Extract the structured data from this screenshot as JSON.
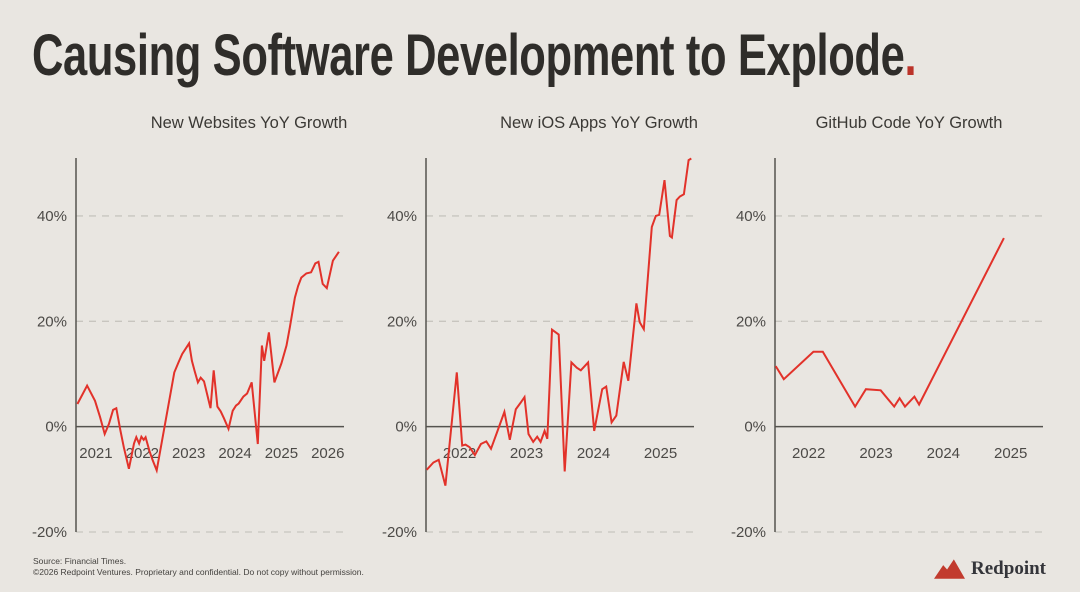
{
  "slide": {
    "title_main": "Causing Software Development to Explode",
    "title_period": ".",
    "footer": {
      "line1": "Source: Financial Times.",
      "line2": "©2026 Redpoint Ventures. Proprietary and confidential. Do not copy without permission."
    },
    "logo": {
      "text": "Redpoint",
      "icon": "mountain-icon"
    }
  },
  "colors": {
    "background": "#e9e6e1",
    "title": "#2f2d2a",
    "accent_red": "#bb3329",
    "line_red": "#e2322a",
    "logo_red": "#c23b2e",
    "axis": "#55534f",
    "grid": "#c8c5bf",
    "tick_label": "#4c4a47",
    "chart_title": "#3b3935"
  },
  "chart_data": [
    {
      "type": "line",
      "title": "New Websites YoY Growth",
      "x_domain": [
        2020.57,
        2026.35
      ],
      "y_domain": [
        -20,
        51
      ],
      "grid": "dashed-horizontal",
      "legend": "none",
      "x_ticks": [
        {
          "v": 2021,
          "label": "2021"
        },
        {
          "v": 2022,
          "label": "2022"
        },
        {
          "v": 2023,
          "label": "2023"
        },
        {
          "v": 2024,
          "label": "2024"
        },
        {
          "v": 2025,
          "label": "2025"
        },
        {
          "v": 2026,
          "label": "2026"
        }
      ],
      "y_ticks": [
        {
          "v": 40,
          "label": "40%"
        },
        {
          "v": 20,
          "label": "20%"
        },
        {
          "v": 0,
          "label": "0%"
        },
        {
          "v": -20,
          "label": "-20%"
        }
      ],
      "series": [
        {
          "name": "New websites YoY growth (%)",
          "points": [
            [
              2020.6,
              4.3
            ],
            [
              2020.81,
              7.8
            ],
            [
              2020.98,
              4.9
            ],
            [
              2021.09,
              1.8
            ],
            [
              2021.19,
              -1.4
            ],
            [
              2021.28,
              0.5
            ],
            [
              2021.37,
              3.2
            ],
            [
              2021.44,
              3.5
            ],
            [
              2021.53,
              -0.8
            ],
            [
              2021.6,
              -3.9
            ],
            [
              2021.71,
              -8.0
            ],
            [
              2021.82,
              -3.2
            ],
            [
              2021.87,
              -2.0
            ],
            [
              2021.93,
              -3.2
            ],
            [
              2021.98,
              -1.9
            ],
            [
              2022.03,
              -2.5
            ],
            [
              2022.07,
              -2.0
            ],
            [
              2022.15,
              -4.5
            ],
            [
              2022.22,
              -6.3
            ],
            [
              2022.31,
              -8.3
            ],
            [
              2022.69,
              10.3
            ],
            [
              2022.78,
              12.2
            ],
            [
              2022.86,
              13.8
            ],
            [
              2023.01,
              15.8
            ],
            [
              2023.07,
              12.5
            ],
            [
              2023.13,
              10.5
            ],
            [
              2023.2,
              8.4
            ],
            [
              2023.26,
              9.3
            ],
            [
              2023.33,
              8.6
            ],
            [
              2023.4,
              6.1
            ],
            [
              2023.47,
              3.5
            ],
            [
              2023.54,
              10.7
            ],
            [
              2023.62,
              3.8
            ],
            [
              2023.69,
              2.9
            ],
            [
              2023.76,
              1.6
            ],
            [
              2023.86,
              -0.4
            ],
            [
              2023.95,
              3.0
            ],
            [
              2024.02,
              4.0
            ],
            [
              2024.08,
              4.4
            ],
            [
              2024.18,
              5.7
            ],
            [
              2024.26,
              6.3
            ],
            [
              2024.36,
              8.4
            ],
            [
              2024.49,
              -3.3
            ],
            [
              2024.58,
              15.4
            ],
            [
              2024.63,
              12.5
            ],
            [
              2024.73,
              17.9
            ],
            [
              2024.85,
              8.4
            ],
            [
              2025.0,
              12.0
            ],
            [
              2025.11,
              15.4
            ],
            [
              2025.18,
              18.8
            ],
            [
              2025.29,
              24.5
            ],
            [
              2025.36,
              26.7
            ],
            [
              2025.43,
              28.3
            ],
            [
              2025.54,
              29.1
            ],
            [
              2025.64,
              29.3
            ],
            [
              2025.73,
              31.0
            ],
            [
              2025.8,
              31.3
            ],
            [
              2025.89,
              27.1
            ],
            [
              2025.98,
              26.3
            ],
            [
              2026.11,
              31.5
            ],
            [
              2026.24,
              33.2
            ]
          ]
        }
      ]
    },
    {
      "type": "line",
      "title": "New iOS Apps YoY Growth",
      "x_domain": [
        2021.5,
        2025.5
      ],
      "y_domain": [
        -20,
        51
      ],
      "grid": "dashed-horizontal",
      "legend": "none",
      "x_ticks": [
        {
          "v": 2022,
          "label": "2022"
        },
        {
          "v": 2023,
          "label": "2023"
        },
        {
          "v": 2024,
          "label": "2024"
        },
        {
          "v": 2025,
          "label": "2025"
        }
      ],
      "y_ticks": [
        {
          "v": 40,
          "label": "40%"
        },
        {
          "v": 20,
          "label": "20%"
        },
        {
          "v": 0,
          "label": "0%"
        },
        {
          "v": -20,
          "label": "-20%"
        }
      ],
      "series": [
        {
          "name": "New iOS apps YoY growth (%)",
          "points": [
            [
              2021.51,
              -8.2
            ],
            [
              2021.61,
              -6.8
            ],
            [
              2021.69,
              -6.3
            ],
            [
              2021.79,
              -11.2
            ],
            [
              2021.96,
              10.3
            ],
            [
              2022.04,
              -3.6
            ],
            [
              2022.09,
              -3.4
            ],
            [
              2022.15,
              -3.9
            ],
            [
              2022.23,
              -5.4
            ],
            [
              2022.32,
              -3.3
            ],
            [
              2022.4,
              -2.8
            ],
            [
              2022.47,
              -4.2
            ],
            [
              2022.56,
              -1.1
            ],
            [
              2022.67,
              2.8
            ],
            [
              2022.75,
              -2.5
            ],
            [
              2022.84,
              3.3
            ],
            [
              2022.91,
              4.5
            ],
            [
              2022.97,
              5.6
            ],
            [
              2023.03,
              -1.4
            ],
            [
              2023.1,
              -2.9
            ],
            [
              2023.16,
              -1.9
            ],
            [
              2023.21,
              -2.9
            ],
            [
              2023.27,
              -0.8
            ],
            [
              2023.31,
              -2.3
            ],
            [
              2023.38,
              18.4
            ],
            [
              2023.48,
              17.5
            ],
            [
              2023.57,
              -8.5
            ],
            [
              2023.67,
              12.2
            ],
            [
              2023.75,
              11.2
            ],
            [
              2023.81,
              10.7
            ],
            [
              2023.92,
              12.2
            ],
            [
              2024.01,
              -0.8
            ],
            [
              2024.13,
              7.1
            ],
            [
              2024.19,
              7.6
            ],
            [
              2024.27,
              0.8
            ],
            [
              2024.34,
              2.1
            ],
            [
              2024.45,
              12.3
            ],
            [
              2024.52,
              8.7
            ],
            [
              2024.64,
              23.4
            ],
            [
              2024.69,
              19.8
            ],
            [
              2024.75,
              18.5
            ],
            [
              2024.87,
              37.9
            ],
            [
              2024.93,
              40.0
            ],
            [
              2024.98,
              40.2
            ],
            [
              2025.06,
              46.8
            ],
            [
              2025.14,
              36.2
            ],
            [
              2025.17,
              35.9
            ],
            [
              2025.24,
              43.0
            ],
            [
              2025.29,
              43.7
            ],
            [
              2025.35,
              44.1
            ],
            [
              2025.42,
              50.6
            ],
            [
              2025.46,
              50.9
            ]
          ]
        }
      ]
    },
    {
      "type": "line",
      "title": "GitHub Code YoY Growth",
      "x_domain": [
        2021.5,
        2025.48
      ],
      "y_domain": [
        -20,
        51
      ],
      "grid": "dashed-horizontal",
      "legend": "none",
      "x_ticks": [
        {
          "v": 2022,
          "label": "2022"
        },
        {
          "v": 2023,
          "label": "2023"
        },
        {
          "v": 2024,
          "label": "2024"
        },
        {
          "v": 2025,
          "label": "2025"
        }
      ],
      "y_ticks": [
        {
          "v": 40,
          "label": "40%"
        },
        {
          "v": 20,
          "label": "20%"
        },
        {
          "v": 0,
          "label": "0%"
        },
        {
          "v": -20,
          "label": "-20%"
        }
      ],
      "series": [
        {
          "name": "GitHub code YoY growth (%)",
          "points": [
            [
              2021.51,
              11.5
            ],
            [
              2021.63,
              9.0
            ],
            [
              2022.07,
              14.2
            ],
            [
              2022.21,
              14.2
            ],
            [
              2022.69,
              3.8
            ],
            [
              2022.85,
              7.1
            ],
            [
              2023.07,
              6.9
            ],
            [
              2023.27,
              3.8
            ],
            [
              2023.35,
              5.4
            ],
            [
              2023.43,
              3.8
            ],
            [
              2023.57,
              5.7
            ],
            [
              2023.64,
              4.2
            ],
            [
              2024.9,
              35.8
            ]
          ]
        }
      ]
    }
  ]
}
